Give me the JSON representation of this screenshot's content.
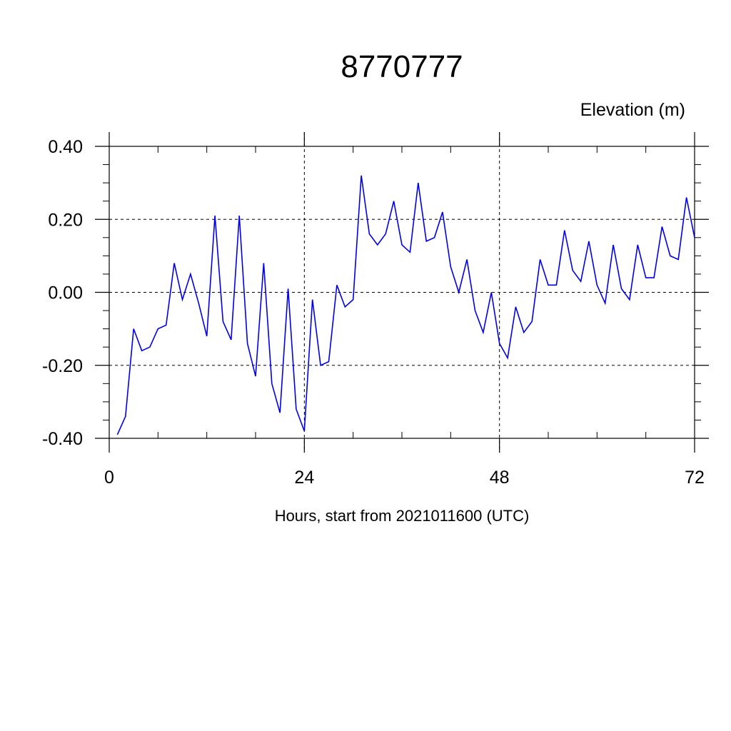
{
  "chart_data": {
    "type": "line",
    "title": "8770777",
    "ylabel": "Elevation (m)",
    "xlabel": "Hours, start from 2021011600 (UTC)",
    "xlim": [
      0,
      72
    ],
    "ylim": [
      -0.4,
      0.4
    ],
    "x_ticks": [
      0,
      24,
      48,
      72
    ],
    "x_tick_labels": [
      "0",
      "24",
      "48",
      "72"
    ],
    "y_ticks": [
      -0.4,
      -0.2,
      0.0,
      0.2,
      0.4
    ],
    "y_tick_labels": [
      "-0.40",
      "-0.20",
      "0.00",
      "0.20",
      "0.40"
    ],
    "grid": true,
    "line_color": "#0000ee",
    "series": [
      {
        "x": [
          1,
          2,
          3,
          4,
          5,
          6,
          7,
          8,
          9,
          10,
          11,
          12,
          13,
          14,
          15,
          16,
          17,
          18,
          19,
          20,
          21,
          22,
          23,
          24,
          25,
          26,
          27,
          28,
          29,
          30,
          31,
          32,
          33,
          34,
          35,
          36,
          37,
          38,
          39,
          40,
          41,
          42,
          43,
          44,
          45,
          46,
          47,
          48,
          49,
          50,
          51,
          52,
          53,
          54,
          55,
          56,
          57,
          58,
          59,
          60,
          61,
          62,
          63,
          64,
          65,
          66,
          67,
          68,
          69,
          70,
          71,
          72
        ],
        "values": [
          -0.39,
          -0.34,
          -0.1,
          -0.16,
          -0.15,
          -0.1,
          -0.09,
          0.08,
          -0.02,
          0.05,
          -0.03,
          -0.12,
          0.21,
          -0.08,
          -0.13,
          0.21,
          -0.14,
          -0.23,
          0.08,
          -0.25,
          -0.33,
          0.01,
          -0.32,
          -0.38,
          -0.02,
          -0.2,
          -0.19,
          0.02,
          -0.04,
          -0.02,
          0.32,
          0.16,
          0.13,
          0.16,
          0.25,
          0.13,
          0.11,
          0.3,
          0.14,
          0.15,
          0.22,
          0.07,
          0.0,
          0.09,
          -0.05,
          -0.11,
          0.0,
          -0.14,
          -0.18,
          -0.04,
          -0.11,
          -0.08,
          0.09,
          0.02,
          0.02,
          0.17,
          0.06,
          0.03,
          0.14,
          0.02,
          -0.03,
          0.13,
          0.01,
          -0.02,
          0.13,
          0.04,
          0.04,
          0.18,
          0.1,
          0.09,
          0.26,
          0.15
        ]
      }
    ]
  }
}
